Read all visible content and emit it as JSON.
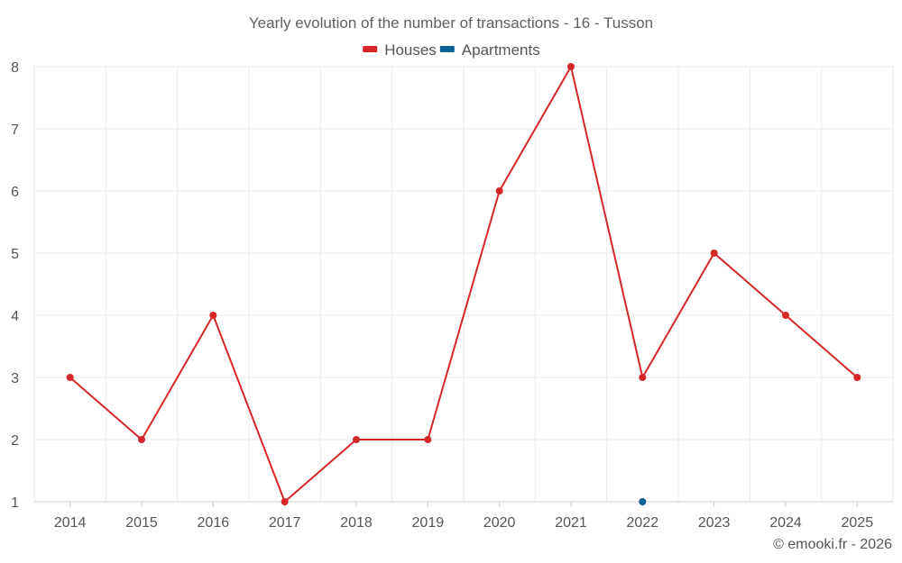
{
  "chart_data": {
    "type": "line",
    "title": "Yearly evolution of the number of transactions - 16 - Tusson",
    "categories": [
      "2014",
      "2015",
      "2016",
      "2017",
      "2018",
      "2019",
      "2020",
      "2021",
      "2022",
      "2023",
      "2024",
      "2025"
    ],
    "series": [
      {
        "name": "Houses",
        "color": "#d62728",
        "values": [
          3,
          2,
          4,
          1,
          2,
          2,
          6,
          8,
          3,
          5,
          4,
          3
        ]
      },
      {
        "name": "Apartments",
        "color": "#0b6196",
        "values": [
          null,
          null,
          null,
          null,
          null,
          null,
          null,
          null,
          1,
          null,
          null,
          null
        ]
      }
    ],
    "y_ticks": [
      "1",
      "2",
      "3",
      "4",
      "5",
      "6",
      "7",
      "8"
    ],
    "ylim": [
      1,
      8
    ],
    "xlabel": "",
    "ylabel": "",
    "legend": "top-center",
    "grid": true
  },
  "credit": "© emooki.fr - 2026"
}
